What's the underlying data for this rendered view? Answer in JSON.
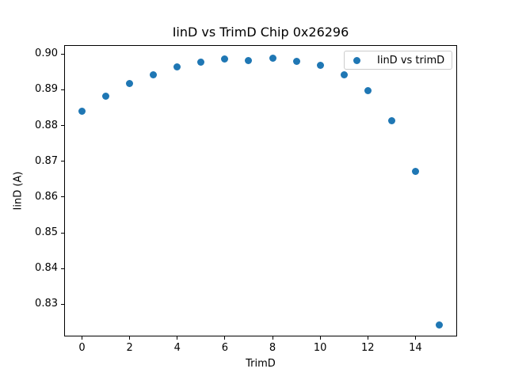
{
  "window": {
    "background_color": "#ffffff"
  },
  "chart_data": {
    "type": "scatter",
    "title": "IinD vs TrimD Chip 0x26296",
    "xlabel": "TrimD",
    "ylabel": "IinD (A)",
    "series": [
      {
        "name": "IinD vs trimD",
        "marker": "circle",
        "marker_color": "#1f77b4",
        "x": [
          0,
          1,
          2,
          3,
          4,
          5,
          6,
          7,
          8,
          9,
          10,
          11,
          12,
          13,
          14,
          15
        ],
        "y": [
          0.884,
          0.8883,
          0.8918,
          0.8943,
          0.8963,
          0.8977,
          0.8986,
          0.8981,
          0.8989,
          0.898,
          0.8968,
          0.8942,
          0.8897,
          0.8813,
          0.8671,
          0.8243
        ]
      }
    ],
    "xticks": [
      0,
      2,
      4,
      6,
      8,
      10,
      12,
      14
    ],
    "yticks": [
      0.83,
      0.84,
      0.85,
      0.86,
      0.87,
      0.88,
      0.89,
      0.9
    ],
    "ytick_decimals": 2,
    "xlim": [
      -0.75,
      15.75
    ],
    "ylim": [
      0.821,
      0.9025
    ],
    "grid": false,
    "legend_position": "upper right",
    "legend_label": "IinD vs trimD",
    "axis_color": "#000000",
    "text_color": "#000000"
  }
}
